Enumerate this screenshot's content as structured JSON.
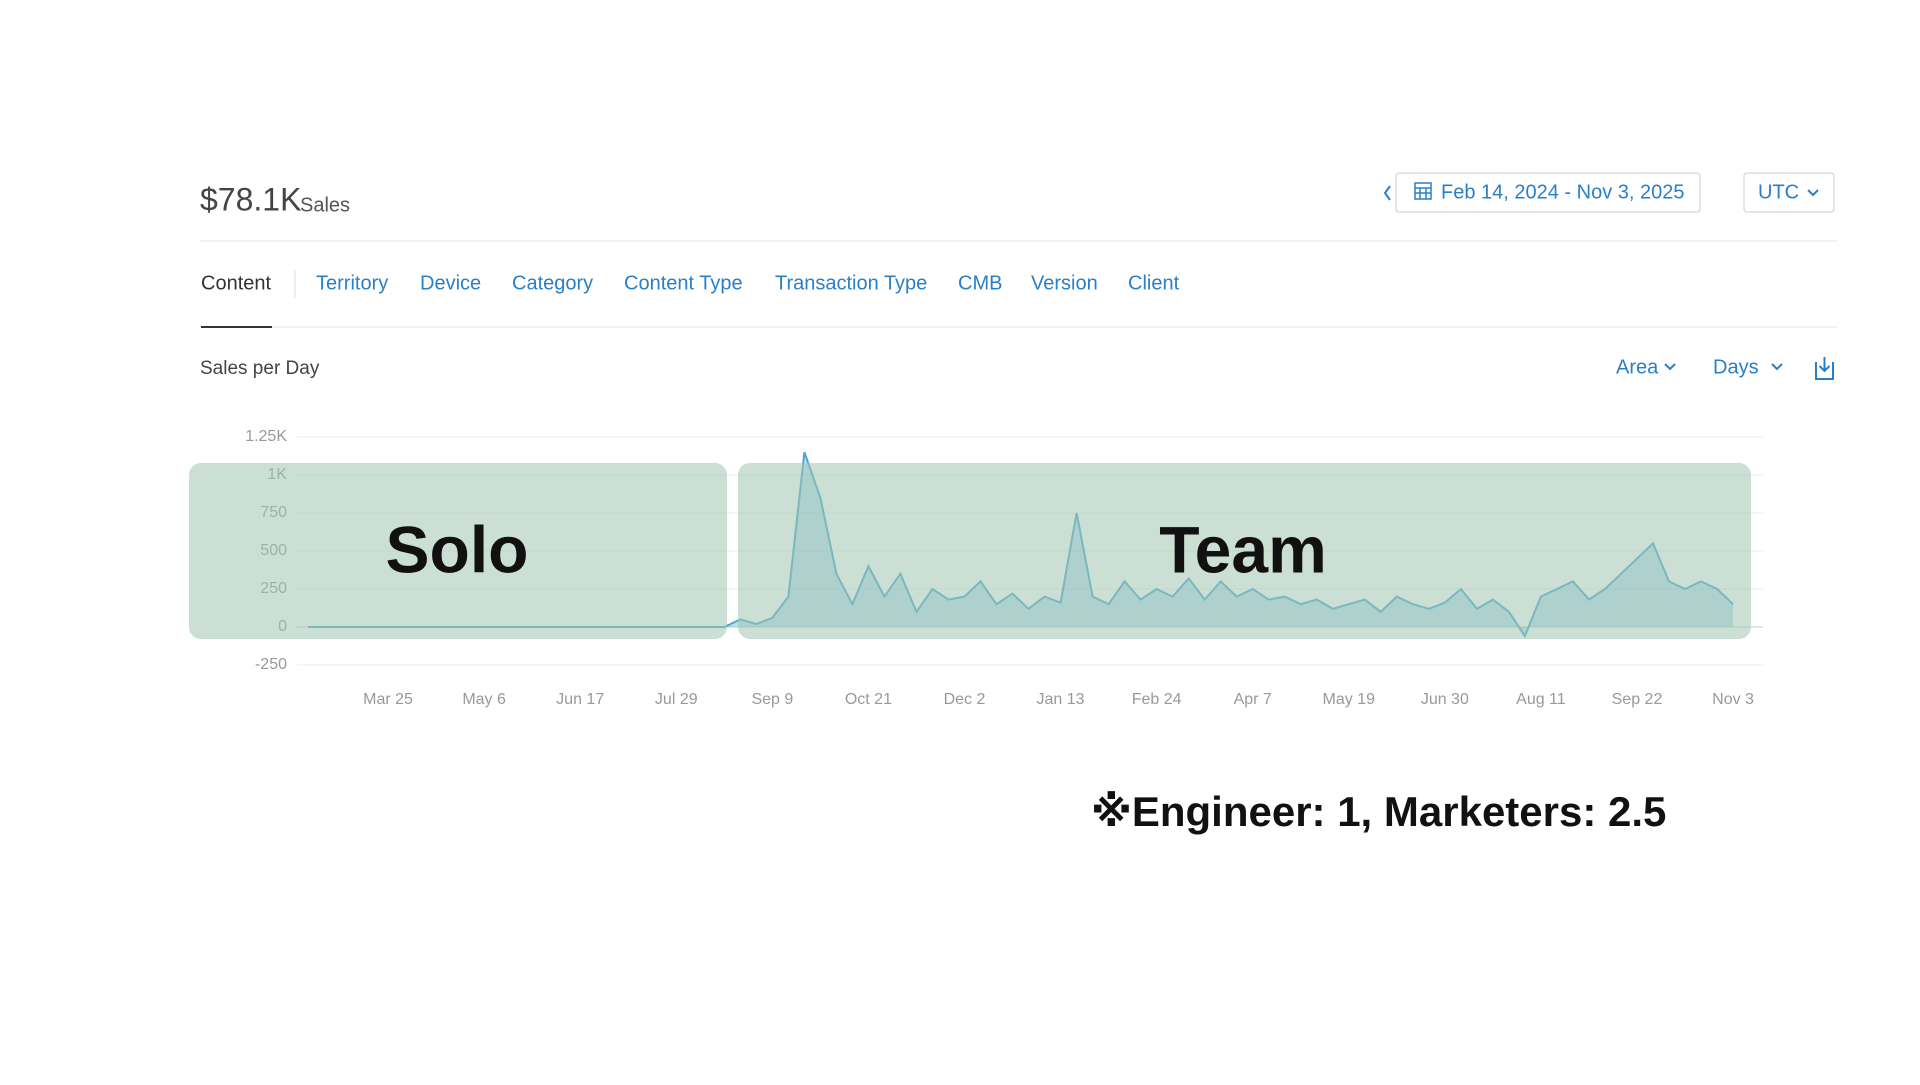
{
  "header": {
    "total": "$78.1K",
    "total_label": "Sales",
    "date_range": "Feb 14, 2024 - Nov 3, 2025",
    "timezone": "UTC"
  },
  "tabs": [
    "Content",
    "Territory",
    "Device",
    "Category",
    "Content Type",
    "Transaction Type",
    "CMB",
    "Version",
    "Client"
  ],
  "controls": {
    "chart_type": "Area",
    "interval": "Days"
  },
  "chart_data": {
    "type": "area",
    "title": "Sales per Day",
    "color": "#4aa8cc",
    "categories": [
      null,
      null,
      null,
      null,
      null,
      "Mar 25",
      null,
      null,
      null,
      null,
      null,
      "May 6",
      null,
      null,
      null,
      null,
      null,
      "Jun 17",
      null,
      null,
      null,
      null,
      null,
      "Jul 29",
      null,
      null,
      null,
      null,
      null,
      "Sep 9",
      null,
      null,
      null,
      null,
      null,
      "Oct 21",
      null,
      null,
      null,
      null,
      null,
      "Dec 2",
      null,
      null,
      null,
      null,
      null,
      "Jan 13",
      null,
      null,
      null,
      null,
      null,
      "Feb 24",
      null,
      null,
      null,
      null,
      null,
      "Apr 7",
      null,
      null,
      null,
      null,
      null,
      "May 19",
      null,
      null,
      null,
      null,
      null,
      "Jun 30",
      null,
      null,
      null,
      null,
      null,
      "Aug 11",
      null,
      null,
      null,
      null,
      null,
      "Sep 22",
      null,
      null,
      null,
      null,
      null,
      "Nov 3"
    ],
    "values": [
      0,
      0,
      0,
      0,
      0,
      0,
      0,
      0,
      0,
      0,
      0,
      0,
      0,
      0,
      0,
      0,
      0,
      0,
      0,
      0,
      0,
      0,
      0,
      0,
      0,
      0,
      0,
      50,
      20,
      60,
      200,
      1150,
      850,
      350,
      150,
      400,
      200,
      350,
      100,
      250,
      180,
      200,
      300,
      150,
      220,
      120,
      200,
      160,
      750,
      200,
      150,
      300,
      180,
      250,
      200,
      320,
      180,
      300,
      200,
      250,
      180,
      200,
      150,
      180,
      120,
      150,
      180,
      100,
      200,
      150,
      120,
      160,
      250,
      120,
      180,
      100,
      -60,
      200,
      250,
      300,
      180,
      250,
      350,
      450,
      550,
      300,
      250,
      300,
      250,
      150
    ],
    "ylim": [
      -250,
      1250
    ],
    "yticks": [
      -250,
      0,
      250,
      500,
      750,
      {
        "value": 1000,
        "label": "1K"
      },
      {
        "value": 1250,
        "label": "1.25K"
      }
    ],
    "grid": true,
    "annotations": [
      "Solo",
      "Team"
    ]
  },
  "footnote": "※Engineer: 1, Marketers: 2.5"
}
